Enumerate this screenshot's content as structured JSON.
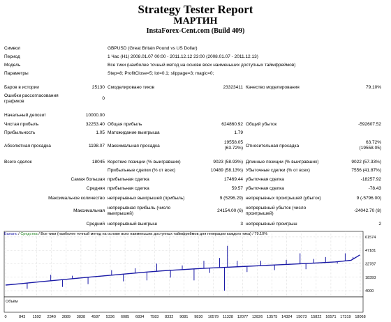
{
  "report": {
    "title": "Strategy Tester Report",
    "subtitle": "МАРТИН",
    "build": "InstaForex-Cent.com (Build 409)"
  },
  "info": [
    {
      "label": "Символ",
      "value": "GBPUSD (Great Britain Pound vs US Dollar)"
    },
    {
      "label": "Период",
      "value": "1 Час (H1) 2008.01.07 00:00 - 2011.12.12 23:00 (2008.01.07 - 2011.12.13)"
    },
    {
      "label": "Модель",
      "value": "Все тики (наиболее точный метод на основе всех наименьших доступных таймфреймов)"
    },
    {
      "label": "Параметры",
      "value": "Step=8; ProfitClose=5; lot=0.1; slippage=3; magic=0;"
    }
  ],
  "stats": {
    "bars_label": "Баров в истории",
    "bars_value": "25130",
    "ticks_label": "Смоделировано тиков",
    "ticks_value": "23323411",
    "quality_label": "Качество моделирования",
    "quality_value": "79.10%",
    "errors_label": "Ошибки рассогласования графиков",
    "errors_value": "0",
    "deposit_label": "Начальный депозит",
    "deposit_value": "10000.00",
    "net_label": "Чистая прибыль",
    "net_value": "32253.40",
    "gross_profit_label": "Общая прибыль",
    "gross_profit_value": "624860.92",
    "gross_loss_label": "Общий убыток",
    "gross_loss_value": "-592607.52",
    "pf_label": "Прибыльность",
    "pf_value": "1.05",
    "expected_label": "Матожидание выигрыша",
    "expected_value": "1.79",
    "abs_dd_label": "Абсолютная просадка",
    "abs_dd_value": "1198.07",
    "max_dd_label": "Максимальная просадка",
    "max_dd_value1": "19558.05",
    "max_dd_value2": "(63.72%)",
    "rel_dd_label": "Относительная просадка",
    "rel_dd_value1": "63.72%",
    "rel_dd_value2": "(19558.05)",
    "trades_label": "Всего сделок",
    "trades_value": "18045",
    "short_label": "Короткие позиции (% выигравших)",
    "short_value": "9023 (58.93%)",
    "long_label": "Длинные позиции (% выигравших)",
    "long_value": "9022 (57.33%)",
    "profit_trades_label": "Прибыльные сделки (% от всех)",
    "profit_trades_value": "10489 (58.13%)",
    "loss_trades_label": "Убыточные сделки (% от всех)",
    "loss_trades_value": "7556 (41.87%)",
    "largest_label": "Самая большая",
    "largest_profit_label": "прибыльная сделка",
    "largest_profit_value": "17469.44",
    "largest_loss_label": "убыточная сделка",
    "largest_loss_value": "-18257.92",
    "average_label": "Средняя",
    "avg_profit_label": "прибыльная сделка",
    "avg_profit_value": "59.57",
    "avg_loss_label": "убыточная сделка",
    "avg_loss_value": "-78.43",
    "max_count_label": "Максимальное количество",
    "max_cons_wins_label": "непрерывных выигрышей (прибыль)",
    "max_cons_wins_value": "9 (5296.29)",
    "max_cons_losses_label": "непрерывных проигрышей (убыток)",
    "max_cons_losses_value": "9 (-5796.00)",
    "maximal_label": "Максимальная",
    "maximal_profit_label": "непрерывная прибыль (число выигрышей)",
    "maximal_profit_value": "24154.00 (6)",
    "maximal_loss_label": "непрерывный убыток (число проигрышей)",
    "maximal_loss_value": "-24042.70 (8)",
    "avg_cons_label": "Средний",
    "avg_cons_wins_label": "непрерывный выигрыш",
    "avg_cons_wins_value": "3",
    "avg_cons_losses_label": "непрерывный проигрыш",
    "avg_cons_losses_value": "2"
  },
  "chart_data": {
    "type": "line",
    "legend_balance": "Баланс",
    "legend_equity": "Средства",
    "legend_rest": " / Все тики (наиболее точный метод на основе всех наименьших доступных таймфреймов для генерации каждого тика) / 79.10%",
    "volume_label": "Объём",
    "y_ticks": [
      "61574",
      "47181",
      "32787",
      "18393",
      "4000"
    ],
    "y_values": [
      61574,
      47181,
      32787,
      18393,
      4000
    ],
    "ylim": [
      -1200,
      66000
    ],
    "x_ticks": [
      "0",
      "843",
      "1592",
      "2340",
      "3089",
      "3838",
      "4587",
      "5336",
      "6085",
      "6834",
      "7583",
      "8332",
      "9081",
      "9830",
      "10579",
      "11328",
      "12077",
      "12826",
      "13575",
      "14324",
      "15073",
      "15822",
      "16571",
      "17319",
      "18068"
    ],
    "xlim": [
      0,
      18068
    ],
    "balance": {
      "x": [
        0,
        800,
        1600,
        2400,
        3200,
        4000,
        4800,
        5600,
        6400,
        7200,
        8000,
        8800,
        9600,
        10400,
        11200,
        12000,
        12800,
        13600,
        14400,
        15200,
        16000,
        16800,
        17600,
        18045
      ],
      "y": [
        10000,
        11600,
        13200,
        14800,
        16400,
        18000,
        19500,
        21000,
        22500,
        24000,
        25200,
        26300,
        27300,
        28200,
        29000,
        29800,
        30600,
        31400,
        32200,
        33000,
        33800,
        34800,
        36500,
        42253
      ]
    },
    "spikes": [
      {
        "x": 1100,
        "y": 6000
      },
      {
        "x": 2300,
        "y": 21000
      },
      {
        "x": 2900,
        "y": 8000
      },
      {
        "x": 3400,
        "y": 20000
      },
      {
        "x": 4200,
        "y": 11000
      },
      {
        "x": 5400,
        "y": 26000
      },
      {
        "x": 6000,
        "y": 14000
      },
      {
        "x": 6600,
        "y": 28000
      },
      {
        "x": 7200,
        "y": 15000
      },
      {
        "x": 7700,
        "y": 33000
      },
      {
        "x": 8400,
        "y": 18000
      },
      {
        "x": 9000,
        "y": 31000
      },
      {
        "x": 9600,
        "y": 15000
      },
      {
        "x": 10100,
        "y": 36000
      },
      {
        "x": 10400,
        "y": 23000
      },
      {
        "x": 10900,
        "y": 39000
      },
      {
        "x": 11150,
        "y": 4000
      },
      {
        "x": 11300,
        "y": 52000
      },
      {
        "x": 11800,
        "y": 36000
      },
      {
        "x": 12300,
        "y": 24000
      },
      {
        "x": 13000,
        "y": 36000
      },
      {
        "x": 13700,
        "y": 26000
      },
      {
        "x": 14300,
        "y": 37000
      },
      {
        "x": 15000,
        "y": 44000
      },
      {
        "x": 15300,
        "y": 27000
      },
      {
        "x": 15700,
        "y": 38000
      },
      {
        "x": 16300,
        "y": 40000
      },
      {
        "x": 16900,
        "y": 33000
      },
      {
        "x": 17300,
        "y": 44000
      },
      {
        "x": 17700,
        "y": 40000
      }
    ],
    "colors": {
      "balance": "#1a1aa6",
      "equity": "#2e8b2e"
    }
  }
}
